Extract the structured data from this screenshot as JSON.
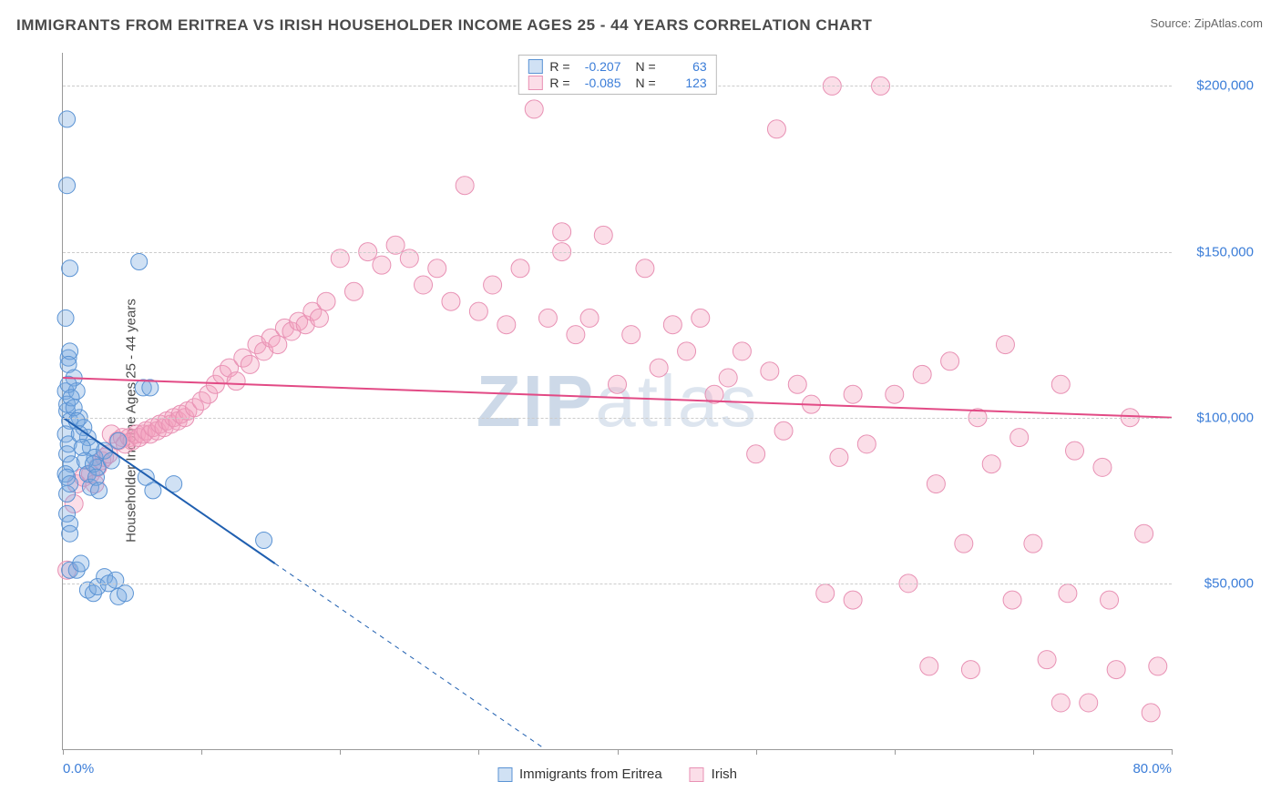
{
  "title": "IMMIGRANTS FROM ERITREA VS IRISH HOUSEHOLDER INCOME AGES 25 - 44 YEARS CORRELATION CHART",
  "source_prefix": "Source: ",
  "source": "ZipAtlas.com",
  "ylabel": "Householder Income Ages 25 - 44 years",
  "watermark_part1": "ZIP",
  "watermark_part2": "atlas",
  "chart": {
    "type": "scatter",
    "background_color": "#ffffff",
    "grid_color": "#cccccc",
    "axis_color": "#999999",
    "xlim": [
      0,
      80
    ],
    "ylim": [
      0,
      210000
    ],
    "xlim_labels": [
      "0.0%",
      "80.0%"
    ],
    "ytick_values": [
      50000,
      100000,
      150000,
      200000
    ],
    "ytick_labels": [
      "$50,000",
      "$100,000",
      "$150,000",
      "$200,000"
    ],
    "xtick_positions_pct": [
      0,
      12.5,
      25,
      37.5,
      50,
      62.5,
      75,
      87.5,
      100
    ],
    "series": [
      {
        "id": "eritrea",
        "label": "Immigrants from Eritrea",
        "fill": "rgba(119,168,223,0.35)",
        "stroke": "#5a93d4",
        "line_color": "#1f5fb0",
        "line_width": 2,
        "marker_r": 9,
        "R": "-0.207",
        "N": "63",
        "trend": {
          "x1": 0,
          "y1": 100000,
          "x2": 15.3,
          "y2": 56000
        },
        "trend_ext": {
          "x1": 15.3,
          "y1": 56000,
          "x2": 34.8,
          "y2": 0
        },
        "points": [
          [
            0.3,
            190000
          ],
          [
            0.2,
            130000
          ],
          [
            0.3,
            170000
          ],
          [
            0.2,
            108000
          ],
          [
            0.4,
            118000
          ],
          [
            0.3,
            102000
          ],
          [
            0.5,
            99000
          ],
          [
            0.2,
            95000
          ],
          [
            0.4,
            92000
          ],
          [
            0.3,
            89000
          ],
          [
            0.6,
            86000
          ],
          [
            0.2,
            83000
          ],
          [
            0.5,
            120000
          ],
          [
            0.3,
            77000
          ],
          [
            0.4,
            116000
          ],
          [
            0.8,
            112000
          ],
          [
            0.3,
            71000
          ],
          [
            0.5,
            68000
          ],
          [
            1.0,
            108000
          ],
          [
            0.3,
            104000
          ],
          [
            1.2,
            100000
          ],
          [
            1.5,
            97000
          ],
          [
            1.8,
            94000
          ],
          [
            2.0,
            91000
          ],
          [
            2.3,
            88000
          ],
          [
            2.5,
            85000
          ],
          [
            0.5,
            54000
          ],
          [
            0.3,
            82000
          ],
          [
            1.0,
            54000
          ],
          [
            1.3,
            56000
          ],
          [
            1.8,
            48000
          ],
          [
            2.2,
            47000
          ],
          [
            2.5,
            49000
          ],
          [
            3.0,
            52000
          ],
          [
            3.3,
            50000
          ],
          [
            3.8,
            51000
          ],
          [
            4.0,
            46000
          ],
          [
            4.5,
            47000
          ],
          [
            0.4,
            110000
          ],
          [
            0.6,
            106000
          ],
          [
            0.8,
            103000
          ],
          [
            1.0,
            99000
          ],
          [
            1.2,
            95000
          ],
          [
            1.4,
            91000
          ],
          [
            1.6,
            87000
          ],
          [
            1.8,
            83000
          ],
          [
            2.0,
            79000
          ],
          [
            2.2,
            86000
          ],
          [
            2.4,
            82000
          ],
          [
            2.6,
            78000
          ],
          [
            3.0,
            90000
          ],
          [
            3.5,
            87000
          ],
          [
            4.0,
            93000
          ],
          [
            5.5,
            147000
          ],
          [
            5.8,
            109000
          ],
          [
            6.0,
            82000
          ],
          [
            6.5,
            78000
          ],
          [
            8.0,
            80000
          ],
          [
            14.5,
            63000
          ],
          [
            6.3,
            109000
          ],
          [
            0.5,
            145000
          ],
          [
            0.5,
            65000
          ],
          [
            0.5,
            80000
          ]
        ]
      },
      {
        "id": "irish",
        "label": "Irish",
        "fill": "rgba(244,160,188,0.35)",
        "stroke": "#e891b4",
        "line_color": "#e24a85",
        "line_width": 2,
        "marker_r": 10,
        "R": "-0.085",
        "N": "123",
        "trend": {
          "x1": 0,
          "y1": 112000,
          "x2": 80,
          "y2": 100000
        },
        "points": [
          [
            0.3,
            54000
          ],
          [
            0.8,
            74000
          ],
          [
            1.0,
            80000
          ],
          [
            1.5,
            82000
          ],
          [
            2.0,
            83000
          ],
          [
            2.3,
            80000
          ],
          [
            2.5,
            85000
          ],
          [
            2.8,
            87000
          ],
          [
            3.0,
            88000
          ],
          [
            3.3,
            89000
          ],
          [
            3.5,
            95000
          ],
          [
            4.0,
            93000
          ],
          [
            4.3,
            94000
          ],
          [
            4.5,
            92000
          ],
          [
            4.8,
            94000
          ],
          [
            5.0,
            93000
          ],
          [
            5.3,
            95000
          ],
          [
            5.5,
            94000
          ],
          [
            5.8,
            95000
          ],
          [
            6.0,
            96000
          ],
          [
            6.3,
            95000
          ],
          [
            6.5,
            97000
          ],
          [
            6.8,
            96000
          ],
          [
            7.0,
            98000
          ],
          [
            7.3,
            97000
          ],
          [
            7.5,
            99000
          ],
          [
            7.8,
            98000
          ],
          [
            8.0,
            100000
          ],
          [
            8.3,
            99000
          ],
          [
            8.5,
            101000
          ],
          [
            8.8,
            100000
          ],
          [
            9.0,
            102000
          ],
          [
            9.5,
            103000
          ],
          [
            10.0,
            105000
          ],
          [
            10.5,
            107000
          ],
          [
            11.0,
            110000
          ],
          [
            11.5,
            113000
          ],
          [
            12.0,
            115000
          ],
          [
            12.5,
            111000
          ],
          [
            13.0,
            118000
          ],
          [
            13.5,
            116000
          ],
          [
            14.0,
            122000
          ],
          [
            14.5,
            120000
          ],
          [
            15.0,
            124000
          ],
          [
            15.5,
            122000
          ],
          [
            16.0,
            127000
          ],
          [
            16.5,
            126000
          ],
          [
            17.0,
            129000
          ],
          [
            17.5,
            128000
          ],
          [
            18.0,
            132000
          ],
          [
            18.5,
            130000
          ],
          [
            19.0,
            135000
          ],
          [
            20.0,
            148000
          ],
          [
            21.0,
            138000
          ],
          [
            22.0,
            150000
          ],
          [
            23.0,
            146000
          ],
          [
            24.0,
            152000
          ],
          [
            25.0,
            148000
          ],
          [
            26.0,
            140000
          ],
          [
            27.0,
            145000
          ],
          [
            28.0,
            135000
          ],
          [
            29.0,
            170000
          ],
          [
            30.0,
            132000
          ],
          [
            31.0,
            140000
          ],
          [
            32.0,
            128000
          ],
          [
            33.0,
            145000
          ],
          [
            34.0,
            193000
          ],
          [
            35.0,
            130000
          ],
          [
            36.0,
            150000
          ],
          [
            36.0,
            156000
          ],
          [
            37.0,
            125000
          ],
          [
            38.0,
            130000
          ],
          [
            39.0,
            155000
          ],
          [
            40.0,
            110000
          ],
          [
            41.0,
            125000
          ],
          [
            42.0,
            145000
          ],
          [
            43.0,
            115000
          ],
          [
            44.0,
            128000
          ],
          [
            45.0,
            120000
          ],
          [
            46.0,
            130000
          ],
          [
            47.0,
            107000
          ],
          [
            48.0,
            112000
          ],
          [
            49.0,
            120000
          ],
          [
            50.0,
            89000
          ],
          [
            51.0,
            114000
          ],
          [
            51.5,
            187000
          ],
          [
            52.0,
            96000
          ],
          [
            53.0,
            110000
          ],
          [
            54.0,
            104000
          ],
          [
            55.0,
            47000
          ],
          [
            55.5,
            200000
          ],
          [
            56.0,
            88000
          ],
          [
            57.0,
            107000
          ],
          [
            57.0,
            45000
          ],
          [
            58.0,
            92000
          ],
          [
            59.0,
            200000
          ],
          [
            60.0,
            107000
          ],
          [
            61.0,
            50000
          ],
          [
            62.0,
            113000
          ],
          [
            62.5,
            25000
          ],
          [
            63.0,
            80000
          ],
          [
            64.0,
            117000
          ],
          [
            65.0,
            62000
          ],
          [
            65.5,
            24000
          ],
          [
            66.0,
            100000
          ],
          [
            67.0,
            86000
          ],
          [
            68.0,
            122000
          ],
          [
            68.5,
            45000
          ],
          [
            69.0,
            94000
          ],
          [
            70.0,
            62000
          ],
          [
            71.0,
            27000
          ],
          [
            72.0,
            110000
          ],
          [
            72.5,
            47000
          ],
          [
            73.0,
            90000
          ],
          [
            74.0,
            14000
          ],
          [
            75.0,
            85000
          ],
          [
            75.5,
            45000
          ],
          [
            76.0,
            24000
          ],
          [
            77.0,
            100000
          ],
          [
            78.0,
            65000
          ],
          [
            78.5,
            11000
          ],
          [
            79.0,
            25000
          ],
          [
            72.0,
            14000
          ]
        ]
      }
    ]
  },
  "legend_top": {
    "R_label": "R =",
    "N_label": "N ="
  }
}
